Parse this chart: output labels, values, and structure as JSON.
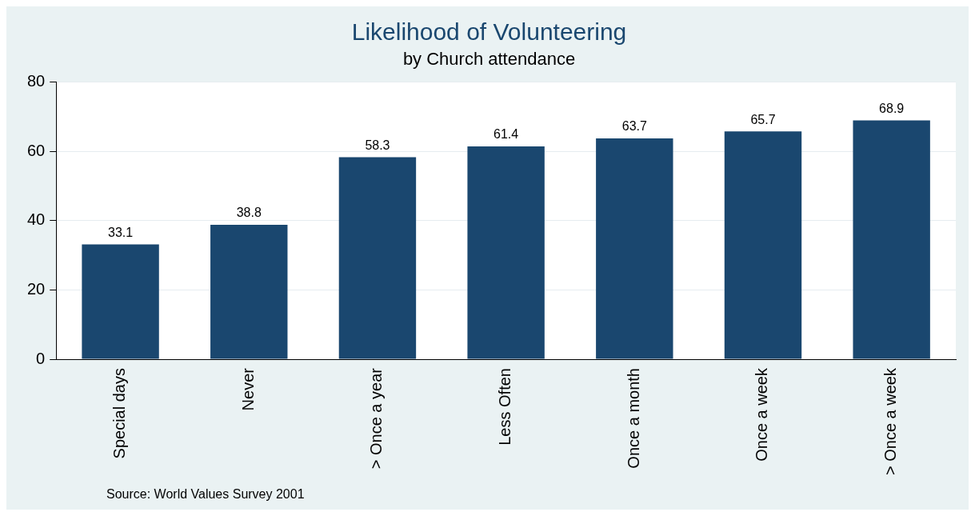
{
  "chart_data": {
    "type": "bar",
    "title": "Likelihood of Volunteering",
    "subtitle": "by Church attendance",
    "categories": [
      "Special days",
      "Never",
      "> Once a year",
      "Less Often",
      "Once a month",
      "Once a week",
      "> Once a week"
    ],
    "values": [
      33.1,
      38.8,
      58.3,
      61.4,
      63.7,
      65.7,
      68.9
    ],
    "color": "#1a476f",
    "ylim": [
      0,
      80
    ],
    "yticks": [
      0,
      20,
      40,
      60,
      80
    ],
    "grid": "y",
    "data_labels": true,
    "legend": false,
    "annotations": [
      "Source: World Values Survey 2001"
    ]
  }
}
